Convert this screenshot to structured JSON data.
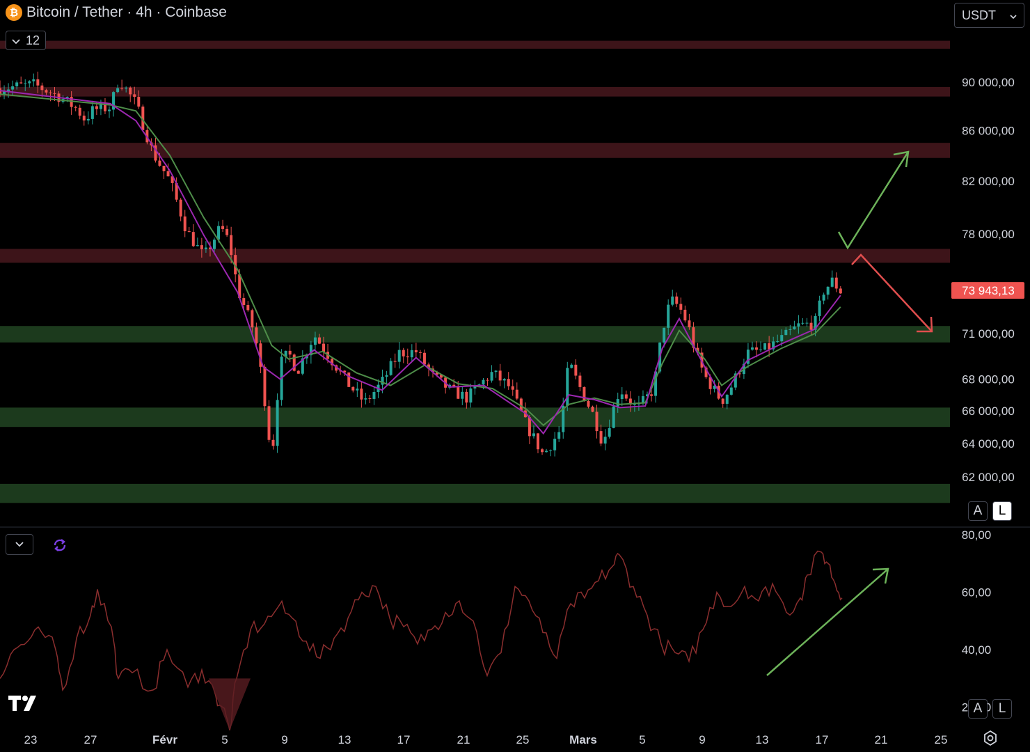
{
  "header": {
    "title": "Bitcoin / Tether · 4h · Coinbase",
    "coin_glyph": "₿",
    "collapse_count": "12"
  },
  "currency_selector": {
    "value": "USDT"
  },
  "scale_buttons": {
    "auto": "A",
    "log": "L"
  },
  "chart_data": [
    {
      "type": "candlestick",
      "title": "Bitcoin / Tether · 4h · Coinbase",
      "ylim": [
        59800,
        94500
      ],
      "y_ticks": [
        90000,
        86000,
        82000,
        78000,
        71000,
        68000,
        66000,
        64000,
        62000
      ],
      "y_tick_labels": [
        "90 000,00",
        "86 000,00",
        "82 000,00",
        "78 000,00",
        "71 000,00",
        "68 000,00",
        "66 000,00",
        "64 000,00",
        "62 000,00"
      ],
      "last_price": 73943.13,
      "last_price_label": "73 943,13",
      "x_ticks": [
        "23",
        "27",
        "Févr",
        "5",
        "9",
        "13",
        "17",
        "21",
        "25",
        "Mars",
        "5",
        "9",
        "13",
        "17",
        "21",
        "25"
      ],
      "resistance_zones": [
        [
          92900,
          93600
        ],
        [
          88800,
          89600
        ],
        [
          83800,
          85000
        ],
        [
          75900,
          76900
        ]
      ],
      "support_zones": [
        [
          70400,
          71500
        ],
        [
          65000,
          66200
        ],
        [
          60500,
          61600
        ]
      ],
      "close_path": [
        [
          0,
          89500
        ],
        [
          4,
          89800
        ],
        [
          7,
          88800
        ],
        [
          9,
          87800
        ],
        [
          10,
          86900
        ],
        [
          11,
          87700
        ],
        [
          13,
          87900
        ],
        [
          14,
          90300
        ],
        [
          16,
          88200
        ],
        [
          18,
          84200
        ],
        [
          20,
          82000
        ],
        [
          22,
          78200
        ],
        [
          24,
          76300
        ],
        [
          26,
          78500
        ],
        [
          27,
          77400
        ],
        [
          28,
          74000
        ],
        [
          30,
          71000
        ],
        [
          31,
          67500
        ],
        [
          32,
          63000
        ],
        [
          33,
          69000
        ],
        [
          34,
          69700
        ],
        [
          35,
          68500
        ],
        [
          37,
          70900
        ],
        [
          39,
          69300
        ],
        [
          41,
          67700
        ],
        [
          43,
          66500
        ],
        [
          45,
          67800
        ],
        [
          47,
          69700
        ],
        [
          49,
          69800
        ],
        [
          51,
          68200
        ],
        [
          53,
          67300
        ],
        [
          55,
          66800
        ],
        [
          57,
          67900
        ],
        [
          58,
          68400
        ],
        [
          60,
          67500
        ],
        [
          62,
          65100
        ],
        [
          64,
          63300
        ],
        [
          66,
          64800
        ],
        [
          67,
          69100
        ],
        [
          68,
          67800
        ],
        [
          70,
          65600
        ],
        [
          71,
          64000
        ],
        [
          73,
          67400
        ],
        [
          75,
          66100
        ],
        [
          76,
          66700
        ],
        [
          77,
          67400
        ],
        [
          78,
          71200
        ],
        [
          79,
          73300
        ],
        [
          80,
          72800
        ],
        [
          81,
          71600
        ],
        [
          82,
          69600
        ],
        [
          83,
          68200
        ],
        [
          84,
          67400
        ],
        [
          85,
          66600
        ],
        [
          86,
          67400
        ],
        [
          87,
          68500
        ],
        [
          88,
          69700
        ],
        [
          90,
          69900
        ],
        [
          92,
          70600
        ],
        [
          94,
          71500
        ],
        [
          96,
          71700
        ],
        [
          97,
          73900
        ],
        [
          98,
          74600
        ],
        [
          99,
          73900
        ]
      ],
      "ema_fast": [
        [
          0,
          89300
        ],
        [
          13,
          88200
        ],
        [
          16,
          86800
        ],
        [
          20,
          82800
        ],
        [
          24,
          77900
        ],
        [
          28,
          73800
        ],
        [
          31,
          68800
        ],
        [
          33,
          68000
        ],
        [
          37,
          69900
        ],
        [
          41,
          68200
        ],
        [
          45,
          67300
        ],
        [
          49,
          69400
        ],
        [
          53,
          67500
        ],
        [
          57,
          67600
        ],
        [
          62,
          65800
        ],
        [
          64,
          64600
        ],
        [
          67,
          67000
        ],
        [
          70,
          66700
        ],
        [
          73,
          66200
        ],
        [
          76,
          66300
        ],
        [
          78,
          70000
        ],
        [
          80,
          72000
        ],
        [
          83,
          68800
        ],
        [
          85,
          66900
        ],
        [
          88,
          69200
        ],
        [
          92,
          70300
        ],
        [
          96,
          71300
        ],
        [
          99,
          73600
        ]
      ],
      "ema_slow": [
        [
          0,
          89000
        ],
        [
          13,
          88100
        ],
        [
          16,
          87600
        ],
        [
          20,
          84000
        ],
        [
          24,
          79200
        ],
        [
          28,
          75400
        ],
        [
          32,
          70200
        ],
        [
          34,
          69300
        ],
        [
          38,
          69800
        ],
        [
          42,
          68400
        ],
        [
          46,
          67600
        ],
        [
          50,
          68900
        ],
        [
          54,
          67700
        ],
        [
          58,
          67400
        ],
        [
          62,
          66100
        ],
        [
          64,
          65100
        ],
        [
          67,
          66400
        ],
        [
          70,
          66800
        ],
        [
          73,
          66400
        ],
        [
          76,
          66500
        ],
        [
          78,
          69000
        ],
        [
          80,
          71200
        ],
        [
          83,
          69300
        ],
        [
          85,
          67600
        ],
        [
          88,
          68800
        ],
        [
          92,
          70000
        ],
        [
          96,
          71000
        ],
        [
          99,
          72800
        ]
      ]
    },
    {
      "type": "line",
      "ylim": [
        10,
        80
      ],
      "y_ticks": [
        80,
        60,
        40,
        20
      ],
      "y_tick_labels": [
        "80,00",
        "60,00",
        "40,00",
        "20,00"
      ],
      "values": [
        [
          0,
          30
        ],
        [
          2,
          40
        ],
        [
          4,
          43
        ],
        [
          6,
          46
        ],
        [
          8,
          40
        ],
        [
          9,
          26
        ],
        [
          11,
          44
        ],
        [
          13,
          52
        ],
        [
          14,
          61
        ],
        [
          16,
          48
        ],
        [
          17,
          30
        ],
        [
          19,
          32
        ],
        [
          22,
          26
        ],
        [
          24,
          40
        ],
        [
          27,
          27
        ],
        [
          29,
          33
        ],
        [
          31,
          24
        ],
        [
          32,
          20
        ],
        [
          33,
          12
        ],
        [
          34,
          30
        ],
        [
          36,
          47
        ],
        [
          38,
          49
        ],
        [
          40,
          55
        ],
        [
          42,
          51
        ],
        [
          44,
          43
        ],
        [
          46,
          37
        ],
        [
          48,
          44
        ],
        [
          50,
          51
        ],
        [
          52,
          60
        ],
        [
          54,
          62
        ],
        [
          56,
          51
        ],
        [
          58,
          48
        ],
        [
          60,
          42
        ],
        [
          62,
          47
        ],
        [
          64,
          53
        ],
        [
          66,
          57
        ],
        [
          68,
          50
        ],
        [
          70,
          31
        ],
        [
          72,
          39
        ],
        [
          74,
          62
        ],
        [
          76,
          57
        ],
        [
          78,
          46
        ],
        [
          80,
          37
        ],
        [
          82,
          56
        ],
        [
          84,
          58
        ],
        [
          86,
          64
        ],
        [
          88,
          69
        ],
        [
          89,
          73
        ],
        [
          91,
          62
        ],
        [
          93,
          52
        ],
        [
          95,
          42
        ],
        [
          97,
          39
        ],
        [
          99,
          36
        ],
        [
          101,
          47
        ],
        [
          103,
          60
        ],
        [
          105,
          55
        ],
        [
          107,
          62
        ],
        [
          109,
          57
        ],
        [
          111,
          63
        ],
        [
          113,
          53
        ],
        [
          115,
          58
        ],
        [
          116,
          66
        ],
        [
          118,
          74
        ],
        [
          119,
          70
        ],
        [
          120,
          63
        ],
        [
          121,
          58
        ]
      ]
    }
  ]
}
